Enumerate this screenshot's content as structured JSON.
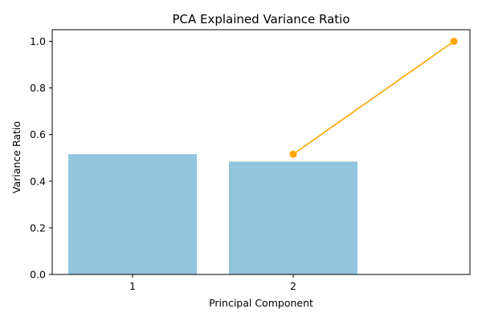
{
  "chart_data": {
    "type": "bar",
    "title": "PCA Explained Variance Ratio",
    "xlabel": "Principal Component",
    "ylabel": "Variance Ratio",
    "ylim": [
      0,
      1.05
    ],
    "xlim": [
      0.5,
      3.1
    ],
    "yticks": [
      0.0,
      0.2,
      0.4,
      0.6,
      0.8,
      1.0
    ],
    "ytick_labels": [
      "0.0",
      "0.2",
      "0.4",
      "0.6",
      "0.8",
      "1.0"
    ],
    "x_tick_positions": [
      1,
      2
    ],
    "categories": [
      "1",
      "2"
    ],
    "bar_width": 0.8,
    "grid": false,
    "series": [
      {
        "type": "bar",
        "x": [
          1,
          2
        ],
        "values": [
          0.516,
          0.484
        ],
        "color": "#92C5DE"
      },
      {
        "type": "line",
        "x": [
          2,
          3
        ],
        "values": [
          0.516,
          1.0
        ],
        "color": "#FFA500",
        "marker": "circle"
      }
    ]
  }
}
